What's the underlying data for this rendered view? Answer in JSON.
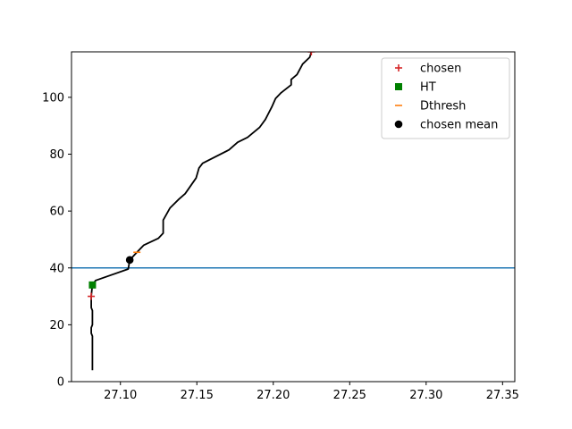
{
  "chart_data": {
    "type": "line",
    "title": "",
    "xlabel": "",
    "ylabel": "",
    "xlim": [
      27.068,
      27.358
    ],
    "ylim": [
      0,
      116
    ],
    "x_ticks": [
      "27.10",
      "27.15",
      "27.20",
      "27.25",
      "27.30",
      "27.35"
    ],
    "x_tick_values": [
      27.1,
      27.15,
      27.2,
      27.25,
      27.3,
      27.35
    ],
    "y_ticks": [
      "0",
      "20",
      "40",
      "60",
      "80",
      "100"
    ],
    "y_tick_values": [
      0,
      20,
      40,
      60,
      80,
      100
    ],
    "grid": false,
    "legend_position": "top-right",
    "profile": {
      "color": "#000000",
      "points": [
        [
          27.0817,
          4
        ],
        [
          27.0817,
          16
        ],
        [
          27.0809,
          17
        ],
        [
          27.0809,
          19
        ],
        [
          27.0817,
          20
        ],
        [
          27.0817,
          25
        ],
        [
          27.0809,
          26
        ],
        [
          27.0809,
          30
        ],
        [
          27.0813,
          32
        ],
        [
          27.0817,
          34
        ],
        [
          27.0838,
          35.6
        ],
        [
          27.1051,
          39.6
        ],
        [
          27.1061,
          42.8
        ],
        [
          27.1108,
          45.5
        ],
        [
          27.1153,
          48
        ],
        [
          27.1248,
          50.4
        ],
        [
          27.128,
          52.2
        ],
        [
          27.128,
          56.8
        ],
        [
          27.1325,
          61.1
        ],
        [
          27.1383,
          64.2
        ],
        [
          27.1424,
          66.1
        ],
        [
          27.1495,
          71.6
        ],
        [
          27.1514,
          75.1
        ],
        [
          27.1538,
          76.8
        ],
        [
          27.171,
          81.5
        ],
        [
          27.1767,
          84.2
        ],
        [
          27.1832,
          85.9
        ],
        [
          27.191,
          89.4
        ],
        [
          27.1948,
          92.2
        ],
        [
          27.199,
          96.6
        ],
        [
          27.2015,
          99.6
        ],
        [
          27.2051,
          101.6
        ],
        [
          27.2117,
          104.4
        ],
        [
          27.2117,
          106.3
        ],
        [
          27.2155,
          108
        ],
        [
          27.2192,
          111.7
        ],
        [
          27.2239,
          114.1
        ],
        [
          27.2249,
          116
        ]
      ]
    },
    "threshold_line": {
      "y": 40,
      "color": "#1f77b4"
    },
    "series": [
      {
        "name": "chosen",
        "marker": "plus",
        "color": "#d62728",
        "points": [
          [
            27.0809,
            30
          ],
          [
            27.2249,
            116
          ]
        ]
      },
      {
        "name": "HT",
        "marker": "square",
        "color": "#008000",
        "points": [
          [
            27.0817,
            34
          ]
        ]
      },
      {
        "name": "Dthresh",
        "marker": "hline",
        "color": "#ff7f0e",
        "points": [
          [
            27.1108,
            45.5
          ]
        ]
      },
      {
        "name": "chosen mean",
        "marker": "circle",
        "color": "#000000",
        "points": [
          [
            27.1061,
            42.8
          ]
        ]
      }
    ]
  }
}
